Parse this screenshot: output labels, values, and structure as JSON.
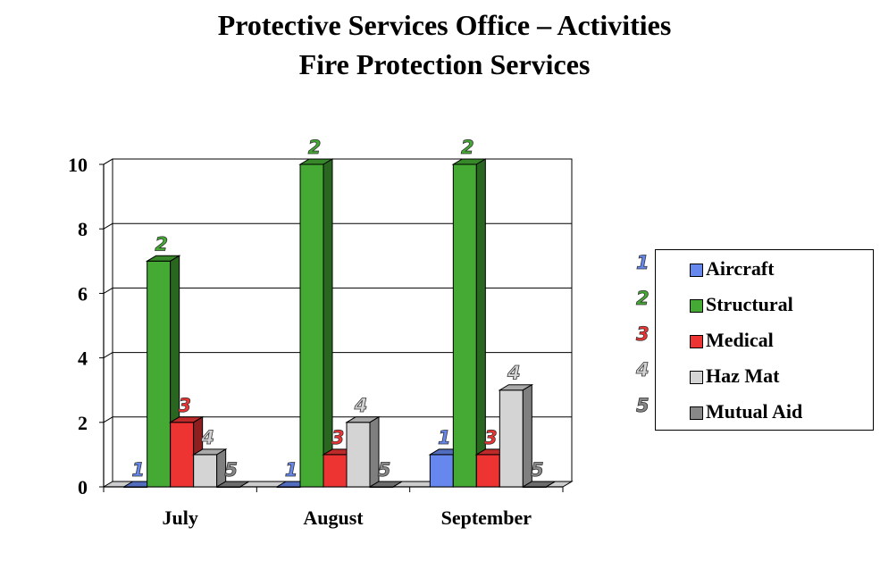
{
  "chart_data": {
    "type": "bar",
    "title": "Protective Services Office – Activities",
    "subtitle": "Fire Protection Services",
    "categories": [
      "July",
      "August",
      "September"
    ],
    "series": [
      {
        "name": "Aircraft",
        "marker": "1",
        "color": "#6688ee",
        "values": [
          0,
          0,
          1
        ]
      },
      {
        "name": "Structural",
        "marker": "2",
        "color": "#44aa33",
        "values": [
          7,
          10,
          10
        ]
      },
      {
        "name": "Medical",
        "marker": "3",
        "color": "#ee3333",
        "values": [
          2,
          1,
          1
        ]
      },
      {
        "name": "Haz Mat",
        "marker": "4",
        "color": "#d4d4d4",
        "values": [
          1,
          2,
          3
        ]
      },
      {
        "name": "Mutual Aid",
        "marker": "5",
        "color": "#888888",
        "values": [
          0,
          0,
          0
        ]
      }
    ],
    "yticks": [
      "0",
      "2",
      "4",
      "6",
      "8",
      "10"
    ],
    "ylim": [
      0,
      10
    ],
    "grid": true,
    "legend_position": "right",
    "xlabel": "",
    "ylabel": ""
  }
}
